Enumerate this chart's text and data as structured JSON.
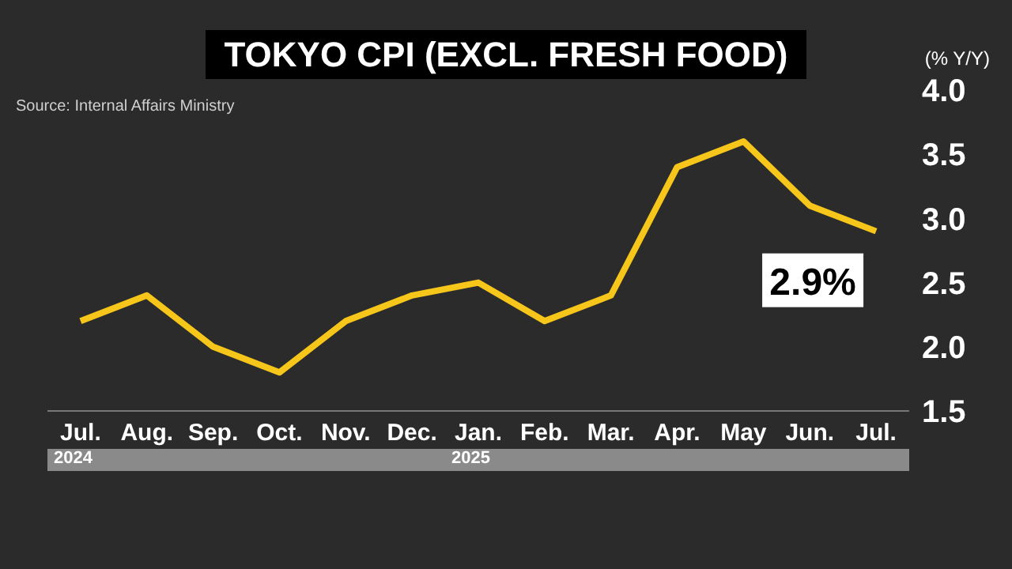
{
  "chart_data": {
    "type": "line",
    "title": "TOKYO CPI (EXCL. FRESH FOOD)",
    "ylabel": "(% Y/Y)",
    "annotations": [
      "Source: Internal Affairs Ministry",
      "2024",
      "2025"
    ],
    "categories": [
      "Jul.",
      "Aug.",
      "Sep.",
      "Oct.",
      "Nov.",
      "Dec.",
      "Jan.",
      "Feb.",
      "Mar.",
      "Apr.",
      "May",
      "Jun.",
      "Jul."
    ],
    "series": [
      {
        "color": "#f7c61a",
        "values": [
          2.2,
          2.4,
          2.0,
          1.8,
          2.2,
          2.4,
          2.5,
          2.2,
          2.4,
          3.4,
          3.6,
          3.1,
          2.9
        ],
        "value_labels": [
          null,
          null,
          null,
          null,
          null,
          null,
          null,
          null,
          null,
          null,
          null,
          null,
          "2.9%"
        ]
      }
    ],
    "ylim": [
      1.5,
      4.0
    ],
    "yticks": [
      1.5,
      {
        "value": 2,
        "label": "2.0"
      },
      2.5,
      {
        "value": 3,
        "label": "3.0"
      },
      3.5,
      {
        "value": 4,
        "label": "4.0"
      }
    ],
    "grid": false,
    "legend": false,
    "marker": "none",
    "line_style": "solid"
  }
}
